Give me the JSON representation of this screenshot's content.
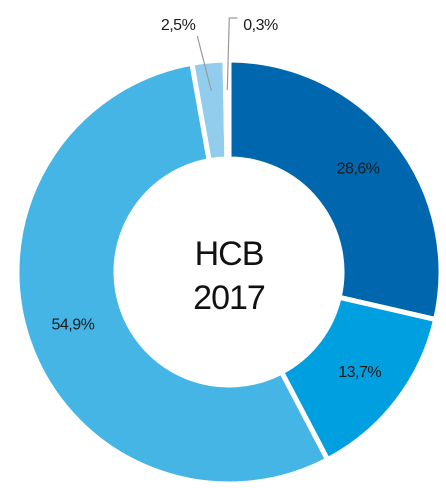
{
  "chart_data": {
    "type": "donut",
    "center_text": [
      "HCB",
      "2017"
    ],
    "values": [
      28.6,
      13.7,
      54.9,
      2.5,
      0.3
    ],
    "value_labels": [
      "28,6%",
      "13,7%",
      "54,9%",
      "2,5%",
      "0,3%"
    ],
    "colors": [
      "#0067ae",
      "#009fe0",
      "#45b5e6",
      "#93cdee",
      "#c3e3f5"
    ]
  }
}
